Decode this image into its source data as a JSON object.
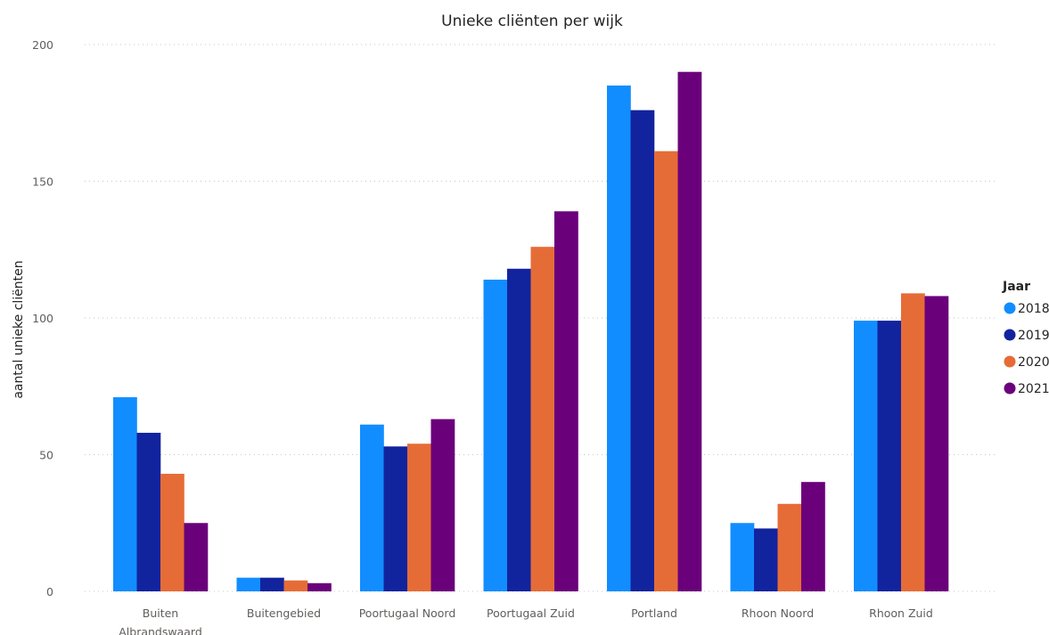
{
  "chart_data": {
    "type": "bar",
    "title": "Unieke cliënten per wijk",
    "xlabel": "",
    "ylabel": "aantal unieke cliënten",
    "ylim": [
      0,
      200
    ],
    "yticks": [
      0,
      50,
      100,
      150,
      200
    ],
    "grid": true,
    "legend_title": "Jaar",
    "legend_placement": "right",
    "categories": [
      "Buiten Albrandswaard",
      "Buitengebied",
      "Poortugaal Noord",
      "Poortugaal Zuid",
      "Portland",
      "Rhoon Noord",
      "Rhoon Zuid"
    ],
    "series": [
      {
        "name": "2018",
        "color": "#118DFF",
        "values": [
          71,
          5,
          61,
          114,
          185,
          25,
          99
        ]
      },
      {
        "name": "2019",
        "color": "#12239E",
        "values": [
          58,
          5,
          53,
          118,
          176,
          23,
          99
        ]
      },
      {
        "name": "2020",
        "color": "#E66C37",
        "values": [
          43,
          4,
          54,
          126,
          161,
          32,
          109
        ]
      },
      {
        "name": "2021",
        "color": "#6B007B",
        "values": [
          25,
          3,
          63,
          139,
          190,
          40,
          108
        ]
      }
    ]
  }
}
